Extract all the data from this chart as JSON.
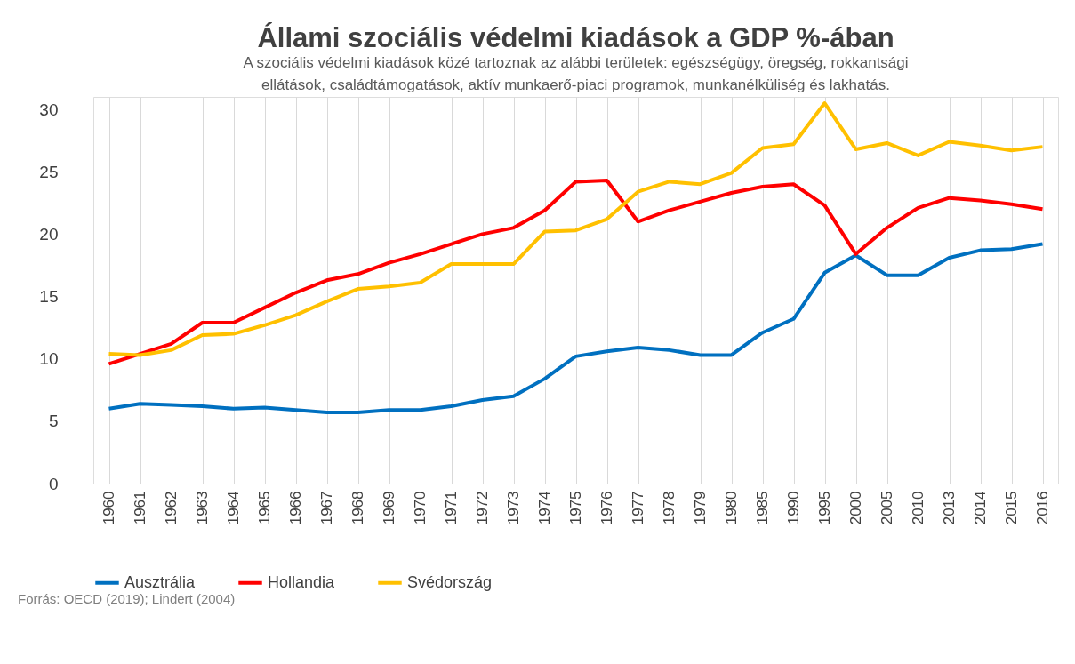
{
  "chart_data": {
    "type": "line",
    "title": "Állami szociális védelmi kiadások a GDP %-ában",
    "subtitle": "A szociális védelmi kiadások közé tartoznak az alábbi területek: egészségügy, öregség, rokkantsági ellátások, családtámogatások, aktív munkaerő-piaci programok, munkanélküliség és lakhatás.",
    "categories": [
      "1960",
      "1961",
      "1962",
      "1963",
      "1964",
      "1965",
      "1966",
      "1967",
      "1968",
      "1969",
      "1970",
      "1971",
      "1972",
      "1973",
      "1974",
      "1975",
      "1976",
      "1977",
      "1978",
      "1979",
      "1980",
      "1985",
      "1990",
      "1995",
      "2000",
      "2005",
      "2010",
      "2013",
      "2014",
      "2015",
      "2016"
    ],
    "series": [
      {
        "name": "Ausztrália",
        "color": "#0070c0",
        "values": [
          6.0,
          6.4,
          6.3,
          6.2,
          6.0,
          6.1,
          5.9,
          5.7,
          5.7,
          5.9,
          5.9,
          6.2,
          6.7,
          7.0,
          8.4,
          10.2,
          10.6,
          10.9,
          10.7,
          10.3,
          10.3,
          12.1,
          13.2,
          16.9,
          18.3,
          16.7,
          16.7,
          18.1,
          18.7,
          18.8,
          19.2
        ]
      },
      {
        "name": "Hollandia",
        "color": "#ff0000",
        "values": [
          9.6,
          10.4,
          11.2,
          12.9,
          12.9,
          14.1,
          15.3,
          16.3,
          16.8,
          17.7,
          18.4,
          19.2,
          20.0,
          20.5,
          21.9,
          24.2,
          24.3,
          21.0,
          21.9,
          22.6,
          23.3,
          23.8,
          24.0,
          22.3,
          18.4,
          20.5,
          22.1,
          22.9,
          22.7,
          22.4,
          22.0
        ]
      },
      {
        "name": "Svédország",
        "color": "#ffc000",
        "values": [
          10.4,
          10.3,
          10.7,
          11.9,
          12.0,
          12.7,
          13.5,
          14.6,
          15.6,
          15.8,
          16.1,
          17.6,
          17.6,
          17.6,
          20.2,
          20.3,
          21.2,
          23.4,
          24.2,
          24.0,
          24.9,
          26.9,
          27.2,
          30.5,
          26.8,
          27.3,
          26.3,
          27.4,
          27.1,
          26.7,
          27.0
        ]
      }
    ],
    "ylim": [
      0,
      31
    ],
    "yticks": [
      0,
      5,
      10,
      15,
      20,
      25,
      30
    ],
    "grid": "x",
    "legend": "bottom",
    "line_style": "solid",
    "annotations": [
      "Forrás: OECD (2019); Lindert (2004)"
    ]
  }
}
